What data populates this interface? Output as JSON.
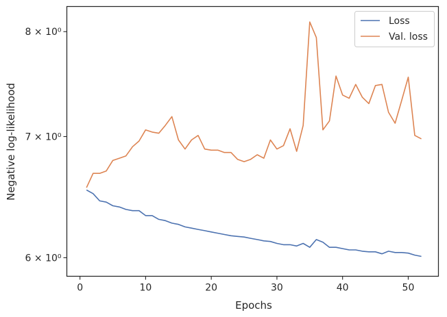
{
  "chart_data": {
    "type": "line",
    "xlabel": "Epochs",
    "ylabel": "Negative log-likelihood",
    "yscale": "log",
    "xlim": [
      -2,
      54.6
    ],
    "ylim": [
      5.86,
      8.26
    ],
    "xticks": [
      0,
      10,
      20,
      30,
      40,
      50
    ],
    "xtick_labels": [
      "0",
      "10",
      "20",
      "30",
      "40",
      "50"
    ],
    "yticks": [
      6,
      7,
      8
    ],
    "ytick_labels": [
      "6 × 10⁰",
      "7 × 10⁰",
      "8 × 10⁰"
    ],
    "grid": false,
    "legend_position": "top-right",
    "x": [
      1,
      2,
      3,
      4,
      5,
      6,
      7,
      8,
      9,
      10,
      11,
      12,
      13,
      14,
      15,
      16,
      17,
      18,
      19,
      20,
      21,
      22,
      23,
      24,
      25,
      26,
      27,
      28,
      29,
      30,
      31,
      32,
      33,
      34,
      35,
      36,
      37,
      38,
      39,
      40,
      41,
      42,
      43,
      44,
      45,
      46,
      47,
      48,
      49,
      50,
      51,
      52
    ],
    "series": [
      {
        "name": "Loss",
        "color": "#4c72b0",
        "values": [
          6.54,
          6.51,
          6.45,
          6.44,
          6.41,
          6.4,
          6.38,
          6.37,
          6.37,
          6.33,
          6.33,
          6.3,
          6.29,
          6.27,
          6.26,
          6.24,
          6.23,
          6.22,
          6.21,
          6.2,
          6.19,
          6.18,
          6.17,
          6.165,
          6.16,
          6.15,
          6.14,
          6.13,
          6.125,
          6.11,
          6.1,
          6.1,
          6.09,
          6.11,
          6.08,
          6.14,
          6.12,
          6.08,
          6.08,
          6.07,
          6.06,
          6.06,
          6.05,
          6.045,
          6.045,
          6.03,
          6.05,
          6.04,
          6.04,
          6.035,
          6.02,
          6.01
        ]
      },
      {
        "name": "Val. loss",
        "color": "#dd8452",
        "values": [
          6.56,
          6.68,
          6.68,
          6.7,
          6.79,
          6.81,
          6.83,
          6.91,
          6.96,
          7.06,
          7.04,
          7.03,
          7.1,
          7.18,
          6.97,
          6.89,
          6.97,
          7.01,
          6.89,
          6.88,
          6.88,
          6.86,
          6.86,
          6.8,
          6.78,
          6.8,
          6.84,
          6.81,
          6.97,
          6.89,
          6.92,
          7.07,
          6.87,
          7.1,
          8.1,
          7.94,
          7.06,
          7.14,
          7.56,
          7.38,
          7.35,
          7.48,
          7.36,
          7.3,
          7.47,
          7.48,
          7.22,
          7.12,
          7.33,
          7.55,
          7.01,
          6.98
        ]
      }
    ]
  }
}
